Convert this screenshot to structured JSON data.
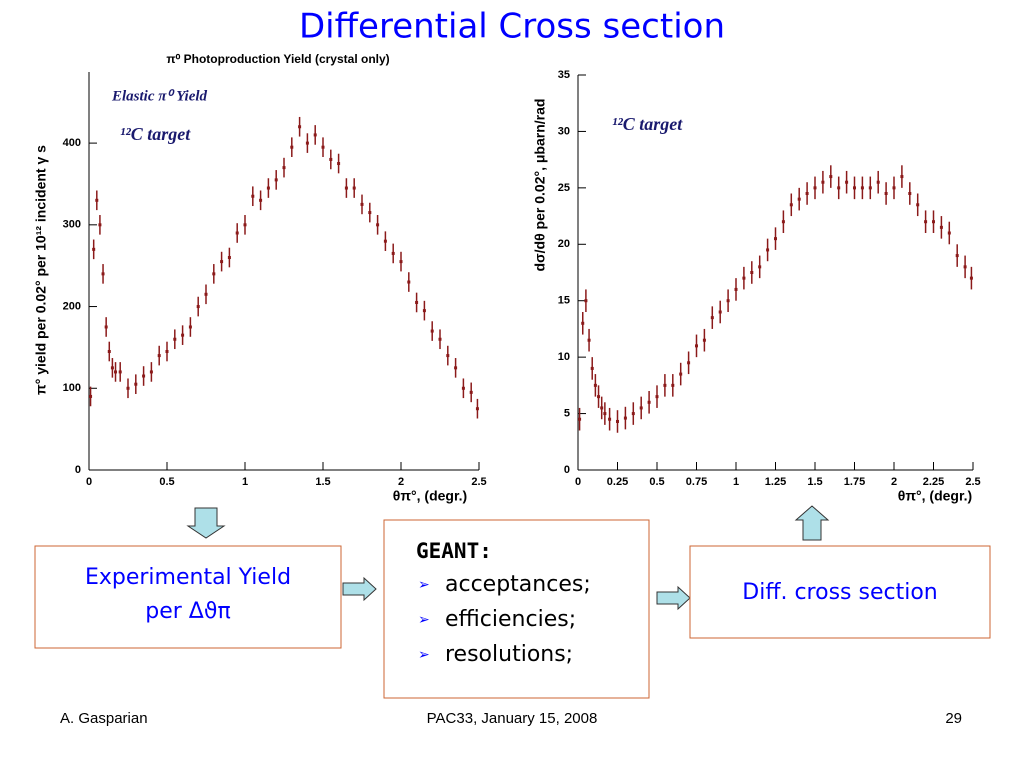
{
  "slide": {
    "title": "Differential Cross section",
    "yield_box": {
      "line1": "Experimental Yield",
      "line2": "per Δϑπ"
    },
    "geant_box": {
      "heading": "GEANT:",
      "items": [
        "acceptances;",
        "efficiencies;",
        "resolutions;"
      ]
    },
    "result_box": "Diff. cross section",
    "footer": {
      "author": "A. Gasparian",
      "event": "PAC33, January 15, 2008",
      "page": "29"
    }
  },
  "chart_data": [
    {
      "type": "scatter",
      "title": "π⁰ Photoproduction Yield (crystal only)",
      "x_label": "θπ°, (degr.)",
      "y_label": "π° yield per 0.02° per 10¹² incident γ s",
      "annotations": [
        "Elastic π⁰ Yield",
        "¹²C target"
      ],
      "color": "#8b1a1a",
      "error": 12,
      "xlim": [
        0,
        2.5
      ],
      "xticks": [
        0,
        0.5,
        1,
        1.5,
        2,
        2.5
      ],
      "ylim": [
        0,
        487
      ],
      "yticks": [
        0,
        100,
        200,
        300,
        400
      ],
      "x": [
        0.01,
        0.03,
        0.05,
        0.07,
        0.09,
        0.11,
        0.13,
        0.15,
        0.17,
        0.2,
        0.25,
        0.3,
        0.35,
        0.4,
        0.45,
        0.5,
        0.55,
        0.6,
        0.65,
        0.7,
        0.75,
        0.8,
        0.85,
        0.9,
        0.95,
        1.0,
        1.05,
        1.1,
        1.15,
        1.2,
        1.25,
        1.3,
        1.35,
        1.4,
        1.45,
        1.5,
        1.55,
        1.6,
        1.65,
        1.7,
        1.75,
        1.8,
        1.85,
        1.9,
        1.95,
        2.0,
        2.05,
        2.1,
        2.15,
        2.2,
        2.25,
        2.3,
        2.35,
        2.4,
        2.45,
        2.49
      ],
      "values": [
        90,
        270,
        330,
        300,
        240,
        175,
        145,
        125,
        120,
        120,
        100,
        105,
        115,
        120,
        140,
        145,
        160,
        165,
        175,
        200,
        215,
        240,
        255,
        260,
        290,
        300,
        335,
        330,
        345,
        355,
        370,
        395,
        420,
        400,
        410,
        395,
        380,
        375,
        345,
        345,
        325,
        315,
        300,
        280,
        265,
        255,
        230,
        205,
        195,
        170,
        160,
        140,
        125,
        100,
        95,
        75
      ]
    },
    {
      "type": "scatter",
      "x_label": "θπ°, (degr.)",
      "y_label": "dσ/dθ per 0.02°, μbarn/rad",
      "annotations": [
        "¹²C target"
      ],
      "color": "#8b1a1a",
      "error": 1,
      "xlim": [
        0,
        2.5
      ],
      "xticks": [
        0,
        0.25,
        0.5,
        0.75,
        1,
        1.25,
        1.5,
        1.75,
        2,
        2.25,
        2.5
      ],
      "ylim": [
        0,
        35
      ],
      "yticks": [
        0,
        5,
        10,
        15,
        20,
        25,
        30,
        35
      ],
      "x": [
        0.01,
        0.03,
        0.05,
        0.07,
        0.09,
        0.11,
        0.13,
        0.15,
        0.17,
        0.2,
        0.25,
        0.3,
        0.35,
        0.4,
        0.45,
        0.5,
        0.55,
        0.6,
        0.65,
        0.7,
        0.75,
        0.8,
        0.85,
        0.9,
        0.95,
        1.0,
        1.05,
        1.1,
        1.15,
        1.2,
        1.25,
        1.3,
        1.35,
        1.4,
        1.45,
        1.5,
        1.55,
        1.6,
        1.65,
        1.7,
        1.75,
        1.8,
        1.85,
        1.9,
        1.95,
        2.0,
        2.05,
        2.1,
        2.15,
        2.2,
        2.25,
        2.3,
        2.35,
        2.4,
        2.45,
        2.49
      ],
      "values": [
        4.5,
        13,
        15,
        11.5,
        9,
        7.5,
        6.5,
        5.5,
        5,
        4.5,
        4.3,
        4.6,
        5,
        5.5,
        6,
        6.5,
        7.5,
        7.5,
        8.5,
        9.5,
        11,
        11.5,
        13.5,
        14,
        15,
        16,
        17,
        17.5,
        18,
        19.5,
        20.5,
        22,
        23.5,
        24,
        24.5,
        25,
        25.5,
        26,
        25,
        25.5,
        25,
        25,
        25,
        25.5,
        24.5,
        25,
        26,
        24.5,
        23.5,
        22,
        22,
        21.5,
        21,
        19,
        18,
        17
      ]
    }
  ]
}
